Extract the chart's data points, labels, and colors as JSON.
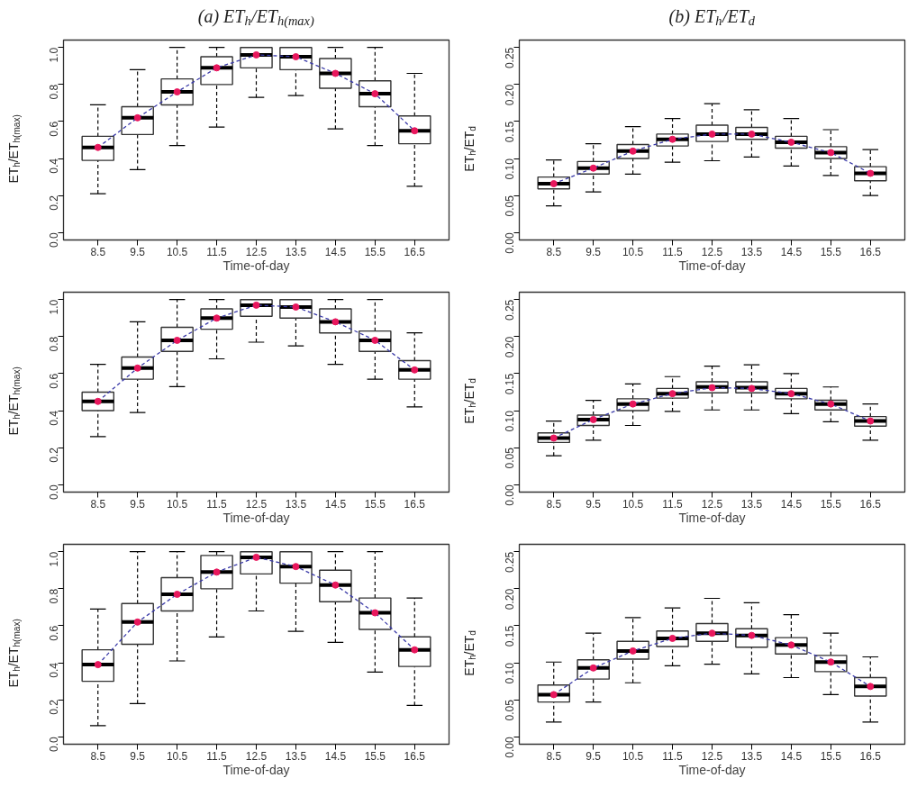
{
  "chart_data": [
    {
      "type": "box",
      "title": "(a) ET$_{h}$/ET$_{h(max)}$",
      "xlabel": "Time-of-day",
      "ylabel": "ET$_{h}$/ET$_{h(max)}$",
      "categories": [
        "8.5",
        "9.5",
        "10.5",
        "11.5",
        "12.5",
        "13.5",
        "14.5",
        "15.5",
        "16.5"
      ],
      "ylim": [
        -0.04,
        1.04
      ],
      "yticks": [
        {
          "value": 0,
          "label": "0.0"
        },
        0.2,
        0.4,
        0.6,
        0.8,
        {
          "value": 1,
          "label": "1.0"
        }
      ],
      "boxes": [
        {
          "low": 0.21,
          "q1": 0.39,
          "median": 0.46,
          "q3": 0.52,
          "high": 0.69
        },
        {
          "low": 0.34,
          "q1": 0.53,
          "median": 0.62,
          "q3": 0.68,
          "high": 0.88
        },
        {
          "low": 0.47,
          "q1": 0.69,
          "median": 0.76,
          "q3": 0.83,
          "high": 1.0
        },
        {
          "low": 0.57,
          "q1": 0.8,
          "median": 0.89,
          "q3": 0.95,
          "high": 1.0
        },
        {
          "low": 0.73,
          "q1": 0.89,
          "median": 0.96,
          "q3": 1.0,
          "high": 1.0
        },
        {
          "low": 0.74,
          "q1": 0.88,
          "median": 0.95,
          "q3": 1.0,
          "high": 1.0
        },
        {
          "low": 0.56,
          "q1": 0.78,
          "median": 0.86,
          "q3": 0.94,
          "high": 1.0
        },
        {
          "low": 0.47,
          "q1": 0.68,
          "median": 0.75,
          "q3": 0.82,
          "high": 1.0
        },
        {
          "low": 0.25,
          "q1": 0.48,
          "median": 0.55,
          "q3": 0.63,
          "high": 0.86
        }
      ],
      "series": [
        {
          "type": "line",
          "color": "#3a3aa8",
          "line_style": "dashed",
          "marker": "none",
          "values": [
            0.46,
            0.62,
            0.76,
            0.89,
            0.96,
            0.95,
            0.86,
            0.75,
            0.55
          ]
        },
        {
          "type": "scatter",
          "color": "#e8175d",
          "marker": "circle",
          "values": [
            0.46,
            0.62,
            0.76,
            0.89,
            0.96,
            0.95,
            0.86,
            0.75,
            0.55
          ]
        }
      ]
    },
    {
      "type": "box",
      "title": "(b) ET$_{h}$/ET$_{d}$",
      "xlabel": "Time-of-day",
      "ylabel": "ET$_{h}$/ET$_{d}$",
      "categories": [
        "8.5",
        "9.5",
        "10.5",
        "11.5",
        "12.5",
        "13.5",
        "14.5",
        "15.5",
        "16.5"
      ],
      "ylim": [
        -0.01,
        0.26
      ],
      "yticks": [
        {
          "value": 0,
          "label": "0.00"
        },
        0.05,
        {
          "value": 0.1,
          "label": "0.10"
        },
        0.15,
        {
          "value": 0.2,
          "label": "0.20"
        },
        0.25
      ],
      "boxes": [
        {
          "low": 0.036,
          "q1": 0.059,
          "median": 0.066,
          "q3": 0.075,
          "high": 0.098
        },
        {
          "low": 0.055,
          "q1": 0.079,
          "median": 0.087,
          "q3": 0.096,
          "high": 0.12
        },
        {
          "low": 0.079,
          "q1": 0.1,
          "median": 0.11,
          "q3": 0.119,
          "high": 0.143
        },
        {
          "low": 0.095,
          "q1": 0.117,
          "median": 0.126,
          "q3": 0.133,
          "high": 0.154
        },
        {
          "low": 0.097,
          "q1": 0.123,
          "median": 0.133,
          "q3": 0.145,
          "high": 0.174
        },
        {
          "low": 0.102,
          "q1": 0.126,
          "median": 0.133,
          "q3": 0.142,
          "high": 0.166
        },
        {
          "low": 0.09,
          "q1": 0.114,
          "median": 0.122,
          "q3": 0.13,
          "high": 0.154
        },
        {
          "low": 0.077,
          "q1": 0.1,
          "median": 0.108,
          "q3": 0.116,
          "high": 0.139
        },
        {
          "low": 0.05,
          "q1": 0.07,
          "median": 0.08,
          "q3": 0.089,
          "high": 0.112
        }
      ],
      "series": [
        {
          "type": "line",
          "color": "#3a3aa8",
          "line_style": "dashed",
          "marker": "none",
          "values": [
            0.066,
            0.087,
            0.11,
            0.126,
            0.133,
            0.133,
            0.122,
            0.108,
            0.08
          ]
        },
        {
          "type": "scatter",
          "color": "#e8175d",
          "marker": "circle",
          "values": [
            0.066,
            0.087,
            0.11,
            0.126,
            0.133,
            0.133,
            0.122,
            0.108,
            0.08
          ]
        }
      ]
    },
    {
      "type": "box",
      "xlabel": "Time-of-day",
      "ylabel": "ET$_{h}$/ET$_{h(max)}$",
      "categories": [
        "8.5",
        "9.5",
        "10.5",
        "11.5",
        "12.5",
        "13.5",
        "14.5",
        "15.5",
        "16.5"
      ],
      "ylim": [
        -0.04,
        1.04
      ],
      "yticks": [
        {
          "value": 0,
          "label": "0.0"
        },
        0.2,
        0.4,
        0.6,
        0.8,
        {
          "value": 1,
          "label": "1.0"
        }
      ],
      "boxes": [
        {
          "low": 0.26,
          "q1": 0.4,
          "median": 0.45,
          "q3": 0.5,
          "high": 0.65
        },
        {
          "low": 0.39,
          "q1": 0.57,
          "median": 0.63,
          "q3": 0.69,
          "high": 0.88
        },
        {
          "low": 0.53,
          "q1": 0.72,
          "median": 0.78,
          "q3": 0.85,
          "high": 1.0
        },
        {
          "low": 0.68,
          "q1": 0.84,
          "median": 0.9,
          "q3": 0.95,
          "high": 1.0
        },
        {
          "low": 0.77,
          "q1": 0.91,
          "median": 0.97,
          "q3": 1.0,
          "high": 1.0
        },
        {
          "low": 0.75,
          "q1": 0.9,
          "median": 0.96,
          "q3": 1.0,
          "high": 1.0
        },
        {
          "low": 0.65,
          "q1": 0.82,
          "median": 0.88,
          "q3": 0.95,
          "high": 1.0
        },
        {
          "low": 0.57,
          "q1": 0.72,
          "median": 0.78,
          "q3": 0.83,
          "high": 1.0
        },
        {
          "low": 0.42,
          "q1": 0.57,
          "median": 0.62,
          "q3": 0.67,
          "high": 0.82
        }
      ],
      "series": [
        {
          "type": "line",
          "color": "#3a3aa8",
          "line_style": "dashed",
          "marker": "none",
          "values": [
            0.45,
            0.63,
            0.78,
            0.9,
            0.97,
            0.96,
            0.88,
            0.78,
            0.62
          ]
        },
        {
          "type": "scatter",
          "color": "#e8175d",
          "marker": "circle",
          "values": [
            0.45,
            0.63,
            0.78,
            0.9,
            0.97,
            0.96,
            0.88,
            0.78,
            0.62
          ]
        }
      ]
    },
    {
      "type": "box",
      "xlabel": "Time-of-day",
      "ylabel": "ET$_{h}$/ET$_{d}$",
      "categories": [
        "8.5",
        "9.5",
        "10.5",
        "11.5",
        "12.5",
        "13.5",
        "14.5",
        "15.5",
        "16.5"
      ],
      "ylim": [
        -0.01,
        0.26
      ],
      "yticks": [
        {
          "value": 0,
          "label": "0.00"
        },
        0.05,
        {
          "value": 0.1,
          "label": "0.10"
        },
        0.15,
        {
          "value": 0.2,
          "label": "0.20"
        },
        0.25
      ],
      "boxes": [
        {
          "low": 0.039,
          "q1": 0.057,
          "median": 0.063,
          "q3": 0.07,
          "high": 0.086
        },
        {
          "low": 0.06,
          "q1": 0.08,
          "median": 0.088,
          "q3": 0.094,
          "high": 0.114
        },
        {
          "low": 0.08,
          "q1": 0.1,
          "median": 0.109,
          "q3": 0.116,
          "high": 0.136
        },
        {
          "low": 0.099,
          "q1": 0.117,
          "median": 0.123,
          "q3": 0.13,
          "high": 0.146
        },
        {
          "low": 0.101,
          "q1": 0.124,
          "median": 0.132,
          "q3": 0.139,
          "high": 0.16
        },
        {
          "low": 0.101,
          "q1": 0.124,
          "median": 0.131,
          "q3": 0.139,
          "high": 0.162
        },
        {
          "low": 0.096,
          "q1": 0.116,
          "median": 0.123,
          "q3": 0.13,
          "high": 0.15
        },
        {
          "low": 0.085,
          "q1": 0.101,
          "median": 0.109,
          "q3": 0.114,
          "high": 0.132
        },
        {
          "low": 0.06,
          "q1": 0.079,
          "median": 0.086,
          "q3": 0.092,
          "high": 0.109
        }
      ],
      "series": [
        {
          "type": "line",
          "color": "#3a3aa8",
          "line_style": "dashed",
          "marker": "none",
          "values": [
            0.063,
            0.088,
            0.109,
            0.123,
            0.131,
            0.13,
            0.123,
            0.109,
            0.086
          ]
        },
        {
          "type": "scatter",
          "color": "#e8175d",
          "marker": "circle",
          "values": [
            0.063,
            0.088,
            0.109,
            0.123,
            0.131,
            0.13,
            0.123,
            0.109,
            0.086
          ]
        }
      ]
    },
    {
      "type": "box",
      "xlabel": "Time-of-day",
      "ylabel": "ET$_{h}$/ET$_{h(max)}$",
      "categories": [
        "8.5",
        "9.5",
        "10.5",
        "11.5",
        "12.5",
        "13.5",
        "14.5",
        "15.5",
        "16.5"
      ],
      "ylim": [
        -0.04,
        1.04
      ],
      "yticks": [
        {
          "value": 0,
          "label": "0.0"
        },
        0.2,
        0.4,
        0.6,
        0.8,
        {
          "value": 1,
          "label": "1.0"
        }
      ],
      "boxes": [
        {
          "low": 0.06,
          "q1": 0.3,
          "median": 0.39,
          "q3": 0.47,
          "high": 0.69
        },
        {
          "low": 0.18,
          "q1": 0.5,
          "median": 0.62,
          "q3": 0.72,
          "high": 1.0
        },
        {
          "low": 0.41,
          "q1": 0.68,
          "median": 0.77,
          "q3": 0.86,
          "high": 1.0
        },
        {
          "low": 0.54,
          "q1": 0.8,
          "median": 0.89,
          "q3": 0.98,
          "high": 1.0
        },
        {
          "low": 0.68,
          "q1": 0.88,
          "median": 0.97,
          "q3": 1.0,
          "high": 1.0
        },
        {
          "low": 0.57,
          "q1": 0.83,
          "median": 0.92,
          "q3": 1.0,
          "high": 1.0
        },
        {
          "low": 0.51,
          "q1": 0.73,
          "median": 0.82,
          "q3": 0.9,
          "high": 1.0
        },
        {
          "low": 0.35,
          "q1": 0.58,
          "median": 0.67,
          "q3": 0.75,
          "high": 1.0
        },
        {
          "low": 0.17,
          "q1": 0.38,
          "median": 0.47,
          "q3": 0.54,
          "high": 0.75
        }
      ],
      "series": [
        {
          "type": "line",
          "color": "#3a3aa8",
          "line_style": "dashed",
          "marker": "none",
          "values": [
            0.39,
            0.62,
            0.77,
            0.89,
            0.97,
            0.92,
            0.82,
            0.67,
            0.47
          ]
        },
        {
          "type": "scatter",
          "color": "#e8175d",
          "marker": "circle",
          "values": [
            0.39,
            0.62,
            0.77,
            0.89,
            0.97,
            0.92,
            0.82,
            0.67,
            0.47
          ]
        }
      ]
    },
    {
      "type": "box",
      "xlabel": "Time-of-day",
      "ylabel": "ET$_{h}$/ET$_{d}$",
      "categories": [
        "8.5",
        "9.5",
        "10.5",
        "11.5",
        "12.5",
        "13.5",
        "14.5",
        "15.5",
        "16.5"
      ],
      "ylim": [
        -0.01,
        0.26
      ],
      "yticks": [
        {
          "value": 0,
          "label": "0.00"
        },
        0.05,
        {
          "value": 0.1,
          "label": "0.10"
        },
        0.15,
        {
          "value": 0.2,
          "label": "0.20"
        },
        0.25
      ],
      "boxes": [
        {
          "low": 0.02,
          "q1": 0.047,
          "median": 0.057,
          "q3": 0.07,
          "high": 0.101
        },
        {
          "low": 0.047,
          "q1": 0.078,
          "median": 0.093,
          "q3": 0.104,
          "high": 0.14
        },
        {
          "low": 0.073,
          "q1": 0.105,
          "median": 0.116,
          "q3": 0.129,
          "high": 0.161
        },
        {
          "low": 0.096,
          "q1": 0.122,
          "median": 0.133,
          "q3": 0.143,
          "high": 0.174
        },
        {
          "low": 0.098,
          "q1": 0.129,
          "median": 0.14,
          "q3": 0.153,
          "high": 0.187
        },
        {
          "low": 0.085,
          "q1": 0.121,
          "median": 0.137,
          "q3": 0.146,
          "high": 0.181
        },
        {
          "low": 0.08,
          "q1": 0.112,
          "median": 0.124,
          "q3": 0.134,
          "high": 0.165
        },
        {
          "low": 0.057,
          "q1": 0.088,
          "median": 0.101,
          "q3": 0.11,
          "high": 0.14
        },
        {
          "low": 0.02,
          "q1": 0.055,
          "median": 0.068,
          "q3": 0.08,
          "high": 0.108
        }
      ],
      "series": [
        {
          "type": "line",
          "color": "#3a3aa8",
          "line_style": "dashed",
          "marker": "none",
          "values": [
            0.057,
            0.093,
            0.116,
            0.133,
            0.14,
            0.137,
            0.124,
            0.101,
            0.068
          ]
        },
        {
          "type": "scatter",
          "color": "#e8175d",
          "marker": "circle",
          "values": [
            0.057,
            0.093,
            0.116,
            0.133,
            0.14,
            0.137,
            0.124,
            0.101,
            0.068
          ]
        }
      ]
    }
  ]
}
